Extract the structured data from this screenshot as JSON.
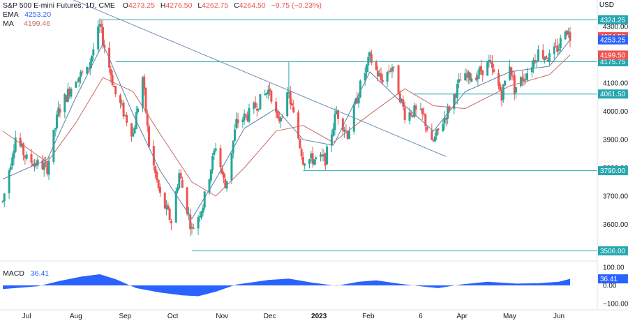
{
  "header": {
    "symbol": "S&P 500 E-mini Futures, 1D, CME",
    "open_label": "O",
    "open": "4273.25",
    "high_label": "H",
    "high": "4276.50",
    "low_label": "L",
    "low": "4262.75",
    "close_label": "C",
    "close": "4264.50",
    "change": "−9.75 (−0.23%)",
    "ema_label": "EMA",
    "ema_value": "4253.20",
    "ma_label": "MA",
    "ma_value": "4199.46"
  },
  "currency": "USD",
  "colors": {
    "up": "#26a69a",
    "down": "#ef5350",
    "ema": "#5b7fa6",
    "ma": "#c86a6a",
    "level": "#26a6b0",
    "trend": "#6d8db4",
    "macd": "#2962ff",
    "axis_text": "#131722",
    "price_tag_close": "#ef5350",
    "price_tag_ema": "#2962ff",
    "price_tag_ma": "#ef5350",
    "level_tag": "#26a6b0"
  },
  "chart_data": {
    "type": "candlestick",
    "title": "S&P 500 E-mini Futures, 1D, CME",
    "y_range": [
      3480,
      4350
    ],
    "y_ticks": [
      3600,
      3700,
      3800,
      3900,
      4000,
      4100,
      4200,
      4300
    ],
    "y_tick_labels": [
      "3600.00",
      "3700.00",
      "3800.00",
      "3900.00",
      "4000.00",
      "4100.00",
      "4200.00",
      "4300.00"
    ],
    "x_labels": [
      {
        "label": "Jul",
        "date": "2022-07-01"
      },
      {
        "label": "Aug",
        "date": "2022-08-01"
      },
      {
        "label": "Sep",
        "date": "2022-09-01"
      },
      {
        "label": "Oct",
        "date": "2022-10-01"
      },
      {
        "label": "Nov",
        "date": "2022-11-01"
      },
      {
        "label": "Dec",
        "date": "2022-12-01"
      },
      {
        "label": "2023",
        "date": "2023-01-01",
        "bold": true
      },
      {
        "label": "Feb",
        "date": "2023-02-01"
      },
      {
        "label": "6",
        "date": "2023-03-06"
      },
      {
        "label": "Apr",
        "date": "2023-04-01"
      },
      {
        "label": "May",
        "date": "2023-05-01"
      },
      {
        "label": "Jun",
        "date": "2023-06-01"
      }
    ],
    "close_path": [
      [
        "2022-06-16",
        3680
      ],
      [
        "2022-06-24",
        3910
      ],
      [
        "2022-07-01",
        3830
      ],
      [
        "2022-07-14",
        3800
      ],
      [
        "2022-07-21",
        4000
      ],
      [
        "2022-08-01",
        4120
      ],
      [
        "2022-08-08",
        4140
      ],
      [
        "2022-08-16",
        4300
      ],
      [
        "2022-08-19",
        4230
      ],
      [
        "2022-08-26",
        4060
      ],
      [
        "2022-09-06",
        3920
      ],
      [
        "2022-09-12",
        4120
      ],
      [
        "2022-09-16",
        3880
      ],
      [
        "2022-09-23",
        3700
      ],
      [
        "2022-09-30",
        3610
      ],
      [
        "2022-10-05",
        3780
      ],
      [
        "2022-10-13",
        3580
      ],
      [
        "2022-10-20",
        3670
      ],
      [
        "2022-10-28",
        3880
      ],
      [
        "2022-11-03",
        3730
      ],
      [
        "2022-11-10",
        3960
      ],
      [
        "2022-11-18",
        3990
      ],
      [
        "2022-12-01",
        4080
      ],
      [
        "2022-12-06",
        3960
      ],
      [
        "2022-12-13",
        4060
      ],
      [
        "2022-12-22",
        3830
      ],
      [
        "2023-01-05",
        3830
      ],
      [
        "2023-01-12",
        4000
      ],
      [
        "2023-01-19",
        3920
      ],
      [
        "2023-01-27",
        4090
      ],
      [
        "2023-02-02",
        4190
      ],
      [
        "2023-02-09",
        4110
      ],
      [
        "2023-02-16",
        4160
      ],
      [
        "2023-02-24",
        3990
      ],
      [
        "2023-03-02",
        4000
      ],
      [
        "2023-03-08",
        3980
      ],
      [
        "2023-03-13",
        3880
      ],
      [
        "2023-03-22",
        3990
      ],
      [
        "2023-03-31",
        4110
      ],
      [
        "2023-04-10",
        4130
      ],
      [
        "2023-04-18",
        4170
      ],
      [
        "2023-04-26",
        4060
      ],
      [
        "2023-05-01",
        4170
      ],
      [
        "2023-05-04",
        4080
      ],
      [
        "2023-05-12",
        4140
      ],
      [
        "2023-05-19",
        4210
      ],
      [
        "2023-05-26",
        4190
      ],
      [
        "2023-06-01",
        4230
      ],
      [
        "2023-06-05",
        4300
      ],
      [
        "2023-06-08",
        4264.5
      ]
    ],
    "ema_path": [
      [
        "2022-06-16",
        3760
      ],
      [
        "2022-07-14",
        3830
      ],
      [
        "2022-08-01",
        4050
      ],
      [
        "2022-08-18",
        4240
      ],
      [
        "2022-09-06",
        3990
      ],
      [
        "2022-09-23",
        3790
      ],
      [
        "2022-10-13",
        3620
      ],
      [
        "2022-10-28",
        3760
      ],
      [
        "2022-11-15",
        3940
      ],
      [
        "2022-12-05",
        4010
      ],
      [
        "2022-12-22",
        3900
      ],
      [
        "2023-01-10",
        3880
      ],
      [
        "2023-02-02",
        4140
      ],
      [
        "2023-02-24",
        4020
      ],
      [
        "2023-03-14",
        3930
      ],
      [
        "2023-04-03",
        4070
      ],
      [
        "2023-05-01",
        4140
      ],
      [
        "2023-05-26",
        4160
      ],
      [
        "2023-06-08",
        4253.2
      ]
    ],
    "ma_path": [
      [
        "2022-06-16",
        3930
      ],
      [
        "2022-07-14",
        3820
      ],
      [
        "2022-08-01",
        3960
      ],
      [
        "2022-08-18",
        4120
      ],
      [
        "2022-09-06",
        4070
      ],
      [
        "2022-09-23",
        3920
      ],
      [
        "2022-10-13",
        3750
      ],
      [
        "2022-10-28",
        3700
      ],
      [
        "2022-11-15",
        3800
      ],
      [
        "2022-12-05",
        3930
      ],
      [
        "2022-12-22",
        3950
      ],
      [
        "2023-01-10",
        3890
      ],
      [
        "2023-02-02",
        3990
      ],
      [
        "2023-02-24",
        4080
      ],
      [
        "2023-03-14",
        4020
      ],
      [
        "2023-04-03",
        4010
      ],
      [
        "2023-05-01",
        4090
      ],
      [
        "2023-05-26",
        4130
      ],
      [
        "2023-06-08",
        4199.46
      ]
    ],
    "levels": [
      {
        "price": 4324.25,
        "label": "4324.25",
        "from": "2022-08-16"
      },
      {
        "price": 4175.75,
        "label": "4175.75",
        "from": "2022-08-26"
      },
      {
        "price": 4061.5,
        "label": "4061.50",
        "from": "2023-03-01"
      },
      {
        "price": 3790.0,
        "label": "3790.00",
        "from": "2022-12-22"
      },
      {
        "price": 3506.0,
        "label": "3506.00",
        "from": "2022-10-13"
      }
    ],
    "vertical_marker": {
      "date": "2022-12-13",
      "from": 4061.5,
      "to": 4175.75
    },
    "trendline": [
      [
        "2022-06-16",
        4500
      ],
      [
        "2023-03-22",
        3840
      ]
    ],
    "price_tags": [
      {
        "price": 4264.5,
        "label": "4264.50",
        "kind": "close"
      },
      {
        "price": 4253.25,
        "label": "4253.25",
        "kind": "ema"
      },
      {
        "price": 4199.5,
        "label": "4199.50",
        "kind": "ma"
      }
    ],
    "macd": {
      "label": "MACD",
      "value": "36.41",
      "y_range": [
        -120,
        120
      ],
      "y_ticks": [
        100,
        0,
        -100
      ],
      "y_tick_labels": [
        "100.00",
        "0.00",
        "−100.00"
      ],
      "series": [
        [
          "2022-06-16",
          -20
        ],
        [
          "2022-07-08",
          -5
        ],
        [
          "2022-07-22",
          25
        ],
        [
          "2022-08-05",
          50
        ],
        [
          "2022-08-16",
          62
        ],
        [
          "2022-08-26",
          35
        ],
        [
          "2022-09-08",
          -15
        ],
        [
          "2022-09-23",
          -40
        ],
        [
          "2022-10-07",
          -55
        ],
        [
          "2022-10-17",
          -60
        ],
        [
          "2022-10-28",
          -35
        ],
        [
          "2022-11-10",
          5
        ],
        [
          "2022-11-30",
          30
        ],
        [
          "2022-12-13",
          38
        ],
        [
          "2022-12-28",
          15
        ],
        [
          "2023-01-12",
          -2
        ],
        [
          "2023-01-26",
          20
        ],
        [
          "2023-02-06",
          28
        ],
        [
          "2023-02-20",
          10
        ],
        [
          "2023-03-06",
          -5
        ],
        [
          "2023-03-17",
          -15
        ],
        [
          "2023-03-31",
          5
        ],
        [
          "2023-04-17",
          20
        ],
        [
          "2023-05-05",
          10
        ],
        [
          "2023-05-19",
          12
        ],
        [
          "2023-06-01",
          20
        ],
        [
          "2023-06-08",
          36.41
        ]
      ]
    }
  }
}
